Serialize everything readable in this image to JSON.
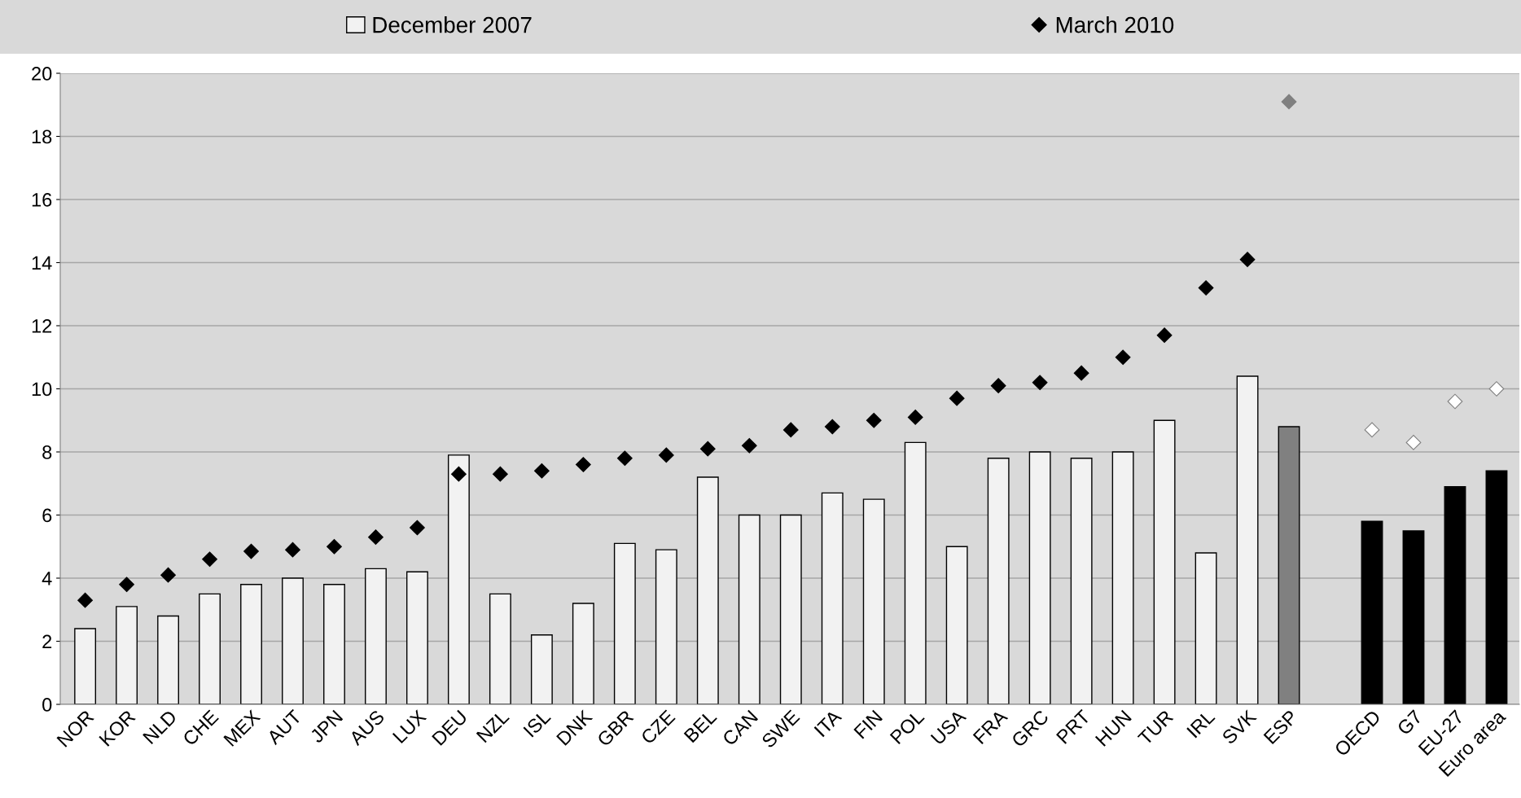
{
  "chart_data": {
    "type": "bar",
    "categories": [
      "NOR",
      "KOR",
      "NLD",
      "CHE",
      "MEX",
      "AUT",
      "JPN",
      "AUS",
      "LUX",
      "DEU",
      "NZL",
      "ISL",
      "DNK",
      "GBR",
      "CZE",
      "BEL",
      "CAN",
      "SWE",
      "ITA",
      "FIN",
      "POL",
      "USA",
      "FRA",
      "GRC",
      "PRT",
      "HUN",
      "TUR",
      "IRL",
      "SVK",
      "ESP",
      null,
      "OECD",
      "G7",
      "EU-27",
      "Euro area"
    ],
    "series": [
      {
        "name": "December 2007",
        "color": "#f2f2f2",
        "colors": [
          "#f2f2f2",
          "#f2f2f2",
          "#f2f2f2",
          "#f2f2f2",
          "#f2f2f2",
          "#f2f2f2",
          "#f2f2f2",
          "#f2f2f2",
          "#f2f2f2",
          "#f2f2f2",
          "#f2f2f2",
          "#f2f2f2",
          "#f2f2f2",
          "#f2f2f2",
          "#f2f2f2",
          "#f2f2f2",
          "#f2f2f2",
          "#f2f2f2",
          "#f2f2f2",
          "#f2f2f2",
          "#f2f2f2",
          "#f2f2f2",
          "#f2f2f2",
          "#f2f2f2",
          "#f2f2f2",
          "#f2f2f2",
          "#f2f2f2",
          "#f2f2f2",
          "#f2f2f2",
          "#808080",
          "#f2f2f2",
          "#000000",
          "#000000",
          "#000000",
          "#000000"
        ],
        "values": [
          2.4,
          3.1,
          2.8,
          3.5,
          3.8,
          4.0,
          3.8,
          4.3,
          4.2,
          7.9,
          3.5,
          2.2,
          3.2,
          5.1,
          4.9,
          7.2,
          6.0,
          6.0,
          6.7,
          6.5,
          8.3,
          5.0,
          7.8,
          8.0,
          7.8,
          8.0,
          9.0,
          4.8,
          10.4,
          8.8,
          null,
          5.8,
          5.5,
          6.9,
          7.4
        ]
      },
      {
        "name": "March 2010",
        "type": "scatter",
        "marker": "diamond",
        "color": "#000000",
        "colors": [
          "#000000",
          "#000000",
          "#000000",
          "#000000",
          "#000000",
          "#000000",
          "#000000",
          "#000000",
          "#000000",
          "#000000",
          "#000000",
          "#000000",
          "#000000",
          "#000000",
          "#000000",
          "#000000",
          "#000000",
          "#000000",
          "#000000",
          "#000000",
          "#000000",
          "#000000",
          "#000000",
          "#000000",
          "#000000",
          "#000000",
          "#000000",
          "#000000",
          "#000000",
          "#808080",
          "#000000",
          "#ffffff",
          "#ffffff",
          "#ffffff",
          "#ffffff"
        ],
        "values": [
          3.3,
          3.8,
          4.1,
          4.6,
          4.85,
          4.9,
          5.0,
          5.3,
          5.6,
          7.3,
          7.3,
          7.4,
          7.6,
          7.8,
          7.9,
          8.1,
          8.2,
          8.7,
          8.8,
          9.0,
          9.1,
          9.7,
          10.1,
          10.2,
          10.5,
          11.0,
          11.7,
          13.2,
          14.1,
          19.1,
          null,
          8.7,
          8.3,
          9.6,
          10.0
        ]
      }
    ],
    "ylim": [
      0,
      20
    ],
    "yticks": [
      0,
      2,
      4,
      6,
      8,
      10,
      12,
      14,
      16,
      18,
      20
    ],
    "grid": "y",
    "legend": "top"
  }
}
